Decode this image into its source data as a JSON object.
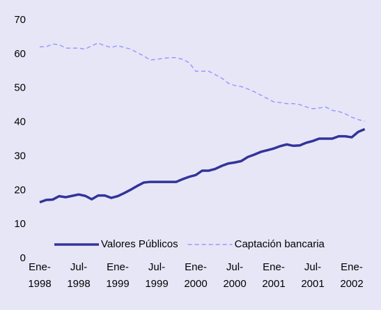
{
  "chart_data": {
    "type": "line",
    "categories": [
      "Ene-\n1998",
      null,
      null,
      null,
      null,
      null,
      "Jul-\n1998",
      null,
      null,
      null,
      null,
      null,
      "Ene-\n1999",
      null,
      null,
      null,
      null,
      null,
      "Jul-\n1999",
      null,
      null,
      null,
      null,
      null,
      "Ene-\n2000",
      null,
      null,
      null,
      null,
      null,
      "Jul-\n2000",
      null,
      null,
      null,
      null,
      null,
      "Ene-\n2001",
      null,
      null,
      null,
      null,
      null,
      "Jul-\n2001",
      null,
      null,
      null,
      null,
      null,
      "Ene-\n2002",
      null,
      null
    ],
    "series": [
      {
        "name": "Valores Públicos",
        "color": "#333399",
        "dashed": false,
        "values": [
          16.5,
          17.2,
          17.3,
          18.3,
          18,
          18.4,
          18.8,
          18.4,
          17.4,
          18.5,
          18.5,
          17.8,
          18.3,
          19.2,
          20.2,
          21.3,
          22.3,
          22.5,
          22.5,
          22.5,
          22.5,
          22.5,
          23.3,
          24,
          24.5,
          25.8,
          25.8,
          26.3,
          27.2,
          27.9,
          28.2,
          28.6,
          29.8,
          30.5,
          31.3,
          31.8,
          32.3,
          33,
          33.5,
          33.1,
          33.2,
          34,
          34.5,
          35.2,
          35.2,
          35.2,
          35.9,
          35.9,
          35.6,
          37.2,
          38
        ]
      },
      {
        "name": "Captación bancaria",
        "color": "#9999ff",
        "dashed": true,
        "values": [
          62.2,
          62.2,
          63,
          62.8,
          61.8,
          61.8,
          61.8,
          61.5,
          62.5,
          63.3,
          62.5,
          62,
          62.5,
          62,
          61.5,
          60.5,
          59.5,
          58.3,
          58.5,
          58.8,
          59,
          59,
          58.5,
          57.5,
          55,
          55,
          55,
          54,
          53,
          51.5,
          50.8,
          50.5,
          49.8,
          49,
          48,
          47,
          46,
          45.8,
          45.5,
          45.5,
          45.2,
          44.5,
          44,
          44.2,
          44.5,
          43.5,
          43.2,
          42.5,
          41.5,
          40.8,
          40.3
        ]
      }
    ],
    "ylim": [
      0,
      70
    ],
    "yticks": [
      0,
      10,
      20,
      30,
      40,
      50,
      60,
      70
    ],
    "grid": false,
    "legend": "bottom"
  }
}
